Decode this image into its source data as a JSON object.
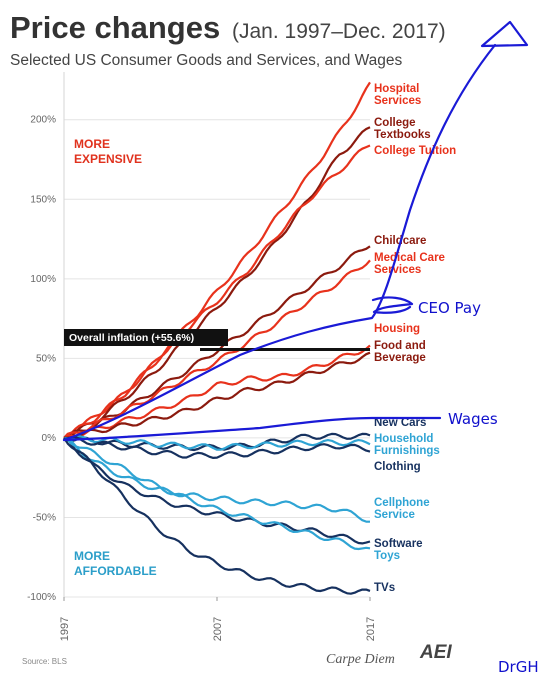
{
  "header": {
    "title": "Price changes",
    "title_range": "(Jan. 1997–Dec. 2017)",
    "subtitle": "Selected US Consumer Goods and Services, and Wages"
  },
  "regions": {
    "upper": [
      "MORE",
      "EXPENSIVE"
    ],
    "lower": [
      "MORE",
      "AFFORDABLE"
    ]
  },
  "inflation_label": "Overall inflation (+55.6%)",
  "footer": {
    "source": "Source: BLS",
    "brand": "Carpe Diem",
    "logo": "AEI",
    "signature": "DrGH"
  },
  "annotations": {
    "ceo": "CEO Pay",
    "wages": "Wages"
  },
  "colors": {
    "red": "#e8321c",
    "dark_red": "#8b1a0e",
    "light_blue": "#2fa4d4",
    "dark_blue": "#16315f",
    "ink": "#1a1ad6"
  },
  "chart_data": {
    "type": "line",
    "x": [
      1997,
      1999,
      2001,
      2003,
      2005,
      2007,
      2009,
      2011,
      2013,
      2015,
      2017
    ],
    "xticks": [
      "1997",
      "2007",
      "2017"
    ],
    "xlim": [
      1997,
      2017
    ],
    "ylim": [
      -100,
      230
    ],
    "yticks": [
      -100,
      -50,
      0,
      50,
      100,
      150,
      200
    ],
    "ytick_labels": [
      "-100%",
      "-50%",
      "0%",
      "50%",
      "100%",
      "150%",
      "200%"
    ],
    "grid": true,
    "inflation": 55.6,
    "series": [
      {
        "name": "Hospital Services",
        "color": "#e8321c",
        "label": [
          "Hospital",
          "Services"
        ],
        "values": [
          0,
          13,
          28,
          48,
          70,
          92,
          115,
          140,
          165,
          192,
          222
        ]
      },
      {
        "name": "College Textbooks",
        "color": "#8b1a0e",
        "label": [
          "College",
          "Textbooks"
        ],
        "values": [
          0,
          10,
          25,
          42,
          62,
          82,
          102,
          125,
          150,
          178,
          195
        ]
      },
      {
        "name": "College Tuition",
        "color": "#e8321c",
        "label": [
          "College Tuition"
        ],
        "values": [
          0,
          12,
          28,
          48,
          68,
          86,
          105,
          128,
          150,
          168,
          185
        ]
      },
      {
        "name": "Childcare",
        "color": "#8b1a0e",
        "label": [
          "Childcare"
        ],
        "values": [
          0,
          8,
          18,
          30,
          42,
          55,
          68,
          82,
          95,
          108,
          122
        ]
      },
      {
        "name": "Medical Care Services",
        "color": "#e8321c",
        "label": [
          "Medical Care",
          "Services"
        ],
        "values": [
          0,
          8,
          17,
          27,
          38,
          48,
          60,
          73,
          86,
          98,
          112
        ]
      },
      {
        "name": "Housing",
        "color": "#e8321c",
        "label": [
          "Housing"
        ],
        "values": [
          0,
          5,
          11,
          17,
          24,
          33,
          37,
          38,
          43,
          50,
          57
        ]
      },
      {
        "name": "Food and Beverage",
        "color": "#8b1a0e",
        "label": [
          "Food and",
          "Beverage"
        ],
        "values": [
          0,
          4,
          8,
          12,
          17,
          24,
          30,
          34,
          40,
          46,
          52
        ]
      },
      {
        "name": "New Cars",
        "color": "#16315f",
        "label": [
          "New Cars"
        ],
        "values": [
          0,
          -2,
          -4,
          -5,
          -6,
          -6,
          -5,
          -2,
          1,
          1,
          1
        ]
      },
      {
        "name": "Household Furnishings",
        "color": "#2fa4d4",
        "label": [
          "Household",
          "Furnishings"
        ],
        "values": [
          0,
          -1,
          -2,
          -4,
          -5,
          -6,
          -5,
          -4,
          -3,
          -3,
          -3
        ]
      },
      {
        "name": "Clothing",
        "color": "#16315f",
        "label": [
          "Clothing"
        ],
        "values": [
          0,
          -3,
          -6,
          -9,
          -11,
          -11,
          -10,
          -8,
          -6,
          -5,
          -7
        ]
      },
      {
        "name": "Cellphone Service",
        "color": "#2fa4d4",
        "label": [
          "Cellphone",
          "Service"
        ],
        "values": [
          0,
          -15,
          -25,
          -32,
          -36,
          -38,
          -40,
          -41,
          -43,
          -45,
          -52
        ]
      },
      {
        "name": "Software",
        "color": "#16315f",
        "label": [
          "Software"
        ],
        "values": [
          0,
          -18,
          -30,
          -38,
          -44,
          -48,
          -52,
          -55,
          -58,
          -62,
          -66
        ]
      },
      {
        "name": "Toys",
        "color": "#2fa4d4",
        "label": [
          "Toys"
        ],
        "values": [
          0,
          -10,
          -20,
          -30,
          -38,
          -45,
          -50,
          -55,
          -60,
          -65,
          -71
        ]
      },
      {
        "name": "TVs",
        "color": "#16315f",
        "label": [
          "TVs"
        ],
        "values": [
          0,
          -18,
          -38,
          -56,
          -70,
          -79,
          -86,
          -91,
          -94,
          -96,
          -97
        ]
      },
      {
        "name": "CEO Pay",
        "color": "#1a1ad6",
        "label": [],
        "values": [
          0,
          8,
          18,
          25,
          35,
          45,
          50,
          58,
          65,
          72,
          82
        ]
      },
      {
        "name": "Wages",
        "color": "#1a1ad6",
        "label": [],
        "values": [
          0,
          3,
          5,
          6,
          6,
          8,
          8,
          9,
          11,
          13,
          16
        ]
      }
    ]
  }
}
